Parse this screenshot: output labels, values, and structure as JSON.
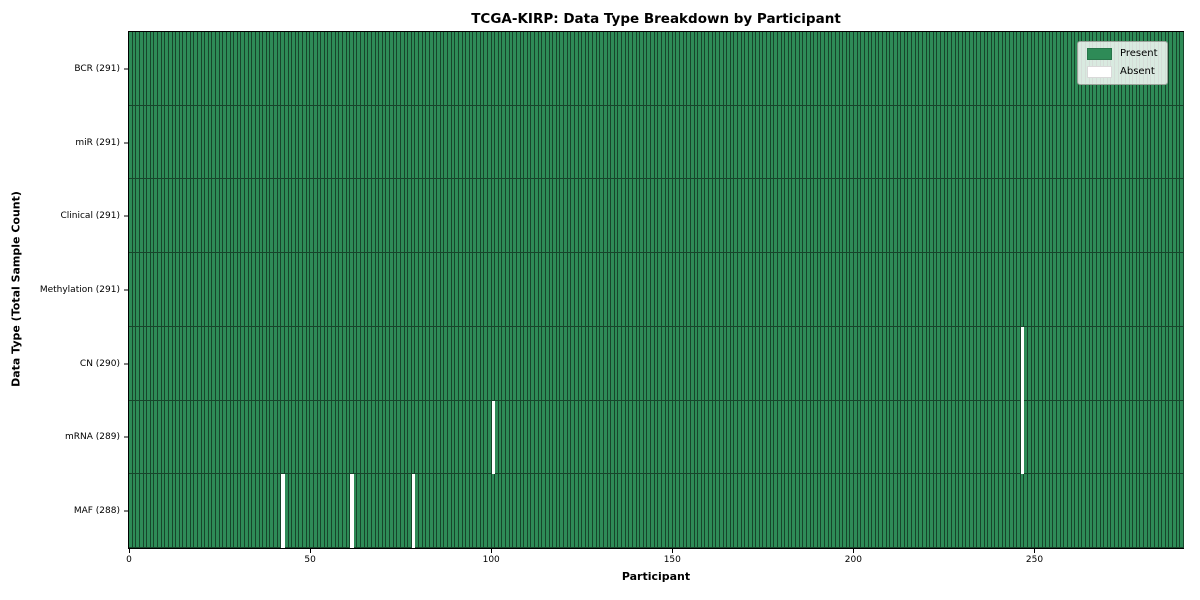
{
  "chart_data": {
    "type": "heatmap",
    "title": "TCGA-KIRP: Data Type Breakdown by Participant",
    "xlabel": "Participant",
    "ylabel": "Data Type (Total Sample Count)",
    "n_participants": 291,
    "xlim": [
      0,
      291
    ],
    "x_ticks": [
      0,
      50,
      100,
      150,
      200,
      250
    ],
    "grid": false,
    "legend_position": "upper right",
    "colors": {
      "present": "#2e8b57",
      "absent": "#ffffff",
      "cell_edge": "rgba(0,0,0,0.5)",
      "plot_border": "#000000"
    },
    "legend": [
      {
        "label": "Present",
        "color": "#2e8b57"
      },
      {
        "label": "Absent",
        "color": "#ffffff"
      }
    ],
    "rows": [
      {
        "data_type": "BCR",
        "label": "BCR (291)",
        "total_samples": 291,
        "absent_participants": []
      },
      {
        "data_type": "miR",
        "label": "miR (291)",
        "total_samples": 291,
        "absent_participants": []
      },
      {
        "data_type": "Clinical",
        "label": "Clinical (291)",
        "total_samples": 291,
        "absent_participants": []
      },
      {
        "data_type": "Methylation",
        "label": "Methylation (291)",
        "total_samples": 291,
        "absent_participants": []
      },
      {
        "data_type": "CN",
        "label": "CN (290)",
        "total_samples": 290,
        "absent_participants": [
          246
        ]
      },
      {
        "data_type": "mRNA",
        "label": "mRNA (289)",
        "total_samples": 289,
        "absent_participants": [
          100,
          246
        ]
      },
      {
        "data_type": "MAF",
        "label": "MAF (288)",
        "total_samples": 288,
        "absent_participants": [
          42,
          61,
          78
        ]
      }
    ]
  }
}
